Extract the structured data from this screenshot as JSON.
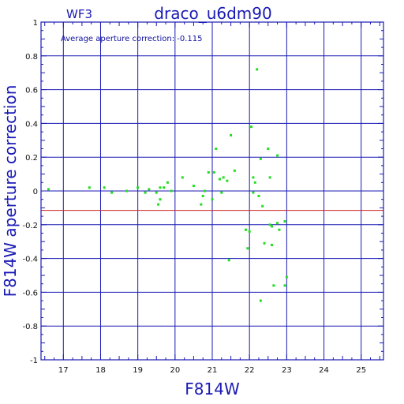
{
  "chart_data": {
    "type": "scatter",
    "label": "WF3",
    "title": "draco_u6dm90",
    "annotation": "Average aperture correction: -0.115",
    "xlabel": "F814W",
    "ylabel": "F814W aperture correction",
    "xlim": [
      16.4,
      25.6
    ],
    "ylim": [
      -1,
      1
    ],
    "x_ticks": [
      17,
      18,
      19,
      20,
      21,
      22,
      23,
      24,
      25
    ],
    "y_ticks": [
      -1,
      -0.8,
      -0.6,
      -0.4,
      -0.2,
      0,
      0.2,
      0.4,
      0.6,
      0.8,
      1
    ],
    "y_tick_labels": [
      "-1",
      "-0.8",
      "-0.6",
      "-0.4",
      "-0.2",
      "0",
      "0.2",
      "0.4",
      "0.6",
      "0.8",
      "1"
    ],
    "grid": true,
    "reference_line": {
      "y": -0.115,
      "color": "#cc2222"
    },
    "colors": {
      "axes": "#1a1ab4",
      "points": "#22dd22",
      "text": "#1a1ab4"
    },
    "points": [
      {
        "x": 16.6,
        "y": 0.01
      },
      {
        "x": 17.7,
        "y": 0.02
      },
      {
        "x": 18.1,
        "y": 0.02
      },
      {
        "x": 18.3,
        "y": -0.01
      },
      {
        "x": 18.7,
        "y": 0.0
      },
      {
        "x": 19.0,
        "y": 0.02
      },
      {
        "x": 19.2,
        "y": -0.01
      },
      {
        "x": 19.3,
        "y": 0.01
      },
      {
        "x": 19.5,
        "y": -0.01
      },
      {
        "x": 19.55,
        "y": -0.08
      },
      {
        "x": 19.6,
        "y": -0.05
      },
      {
        "x": 19.6,
        "y": 0.02
      },
      {
        "x": 19.7,
        "y": 0.02
      },
      {
        "x": 19.8,
        "y": 0.05
      },
      {
        "x": 19.9,
        "y": 0.0
      },
      {
        "x": 20.2,
        "y": 0.08
      },
      {
        "x": 20.5,
        "y": 0.03
      },
      {
        "x": 20.7,
        "y": -0.08
      },
      {
        "x": 20.75,
        "y": -0.03
      },
      {
        "x": 20.8,
        "y": 0.0
      },
      {
        "x": 20.9,
        "y": 0.11
      },
      {
        "x": 21.0,
        "y": -0.05
      },
      {
        "x": 21.05,
        "y": 0.11
      },
      {
        "x": 21.1,
        "y": 0.25
      },
      {
        "x": 21.2,
        "y": 0.07
      },
      {
        "x": 21.25,
        "y": -0.01
      },
      {
        "x": 21.3,
        "y": 0.08
      },
      {
        "x": 21.4,
        "y": 0.06
      },
      {
        "x": 21.45,
        "y": -0.41
      },
      {
        "x": 21.5,
        "y": 0.33
      },
      {
        "x": 21.6,
        "y": 0.12
      },
      {
        "x": 21.9,
        "y": -0.23
      },
      {
        "x": 21.95,
        "y": -0.34
      },
      {
        "x": 22.0,
        "y": -0.24
      },
      {
        "x": 22.05,
        "y": 0.38
      },
      {
        "x": 22.1,
        "y": 0.08
      },
      {
        "x": 22.1,
        "y": -0.01
      },
      {
        "x": 22.15,
        "y": 0.05
      },
      {
        "x": 22.2,
        "y": 0.72
      },
      {
        "x": 22.25,
        "y": -0.03
      },
      {
        "x": 22.3,
        "y": -0.65
      },
      {
        "x": 22.3,
        "y": 0.19
      },
      {
        "x": 22.35,
        "y": -0.09
      },
      {
        "x": 22.4,
        "y": -0.31
      },
      {
        "x": 22.5,
        "y": 0.25
      },
      {
        "x": 22.55,
        "y": 0.08
      },
      {
        "x": 22.55,
        "y": -0.2
      },
      {
        "x": 22.6,
        "y": -0.21
      },
      {
        "x": 22.6,
        "y": -0.32
      },
      {
        "x": 22.65,
        "y": -0.56
      },
      {
        "x": 22.75,
        "y": 0.21
      },
      {
        "x": 22.75,
        "y": -0.19
      },
      {
        "x": 22.8,
        "y": -0.23
      },
      {
        "x": 22.95,
        "y": -0.18
      },
      {
        "x": 23.0,
        "y": -0.51
      },
      {
        "x": 22.95,
        "y": -0.56
      }
    ]
  }
}
